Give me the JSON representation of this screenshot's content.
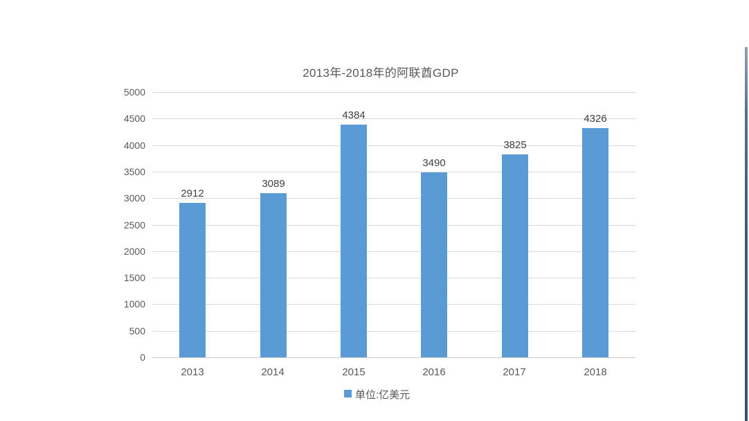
{
  "chart_data": {
    "type": "bar",
    "title": "2013年-2018年的阿联酋GDP",
    "categories": [
      "2013",
      "2014",
      "2015",
      "2016",
      "2017",
      "2018"
    ],
    "values": [
      2912,
      3089,
      4384,
      3490,
      3825,
      4326
    ],
    "series_name": "单位:亿美元",
    "xlabel": "",
    "ylabel": "",
    "ylim": [
      0,
      5000
    ],
    "ytick_step": 500,
    "yticks": [
      0,
      500,
      1000,
      1500,
      2000,
      2500,
      3000,
      3500,
      4000,
      4500,
      5000
    ],
    "grid": "horizontal",
    "legend_position": "bottom-center",
    "colors": {
      "bar": "#5b9bd5",
      "gridline": "#d9d9d9",
      "axis_line": "#c9c9c9",
      "title_text": "#595959",
      "tick_text": "#595959",
      "value_label_text": "#404040",
      "legend_text": "#595959",
      "background": "#ffffff",
      "right_edge_accent": "#3e5b7d"
    }
  },
  "legend": {
    "label": "单位:亿美元"
  }
}
